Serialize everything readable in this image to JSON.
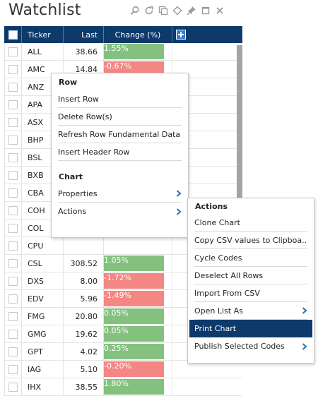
{
  "title": "Watchlist",
  "toolbar_icons": [
    "search-icon",
    "refresh-icon",
    "copy-icon",
    "diamond-icon",
    "pin-icon",
    "maximize-icon",
    "close-icon"
  ],
  "colors": {
    "header": "#0e3a6b",
    "positive": "#85c17e",
    "negative": "#f48683",
    "highlight": "#0e3a6b"
  },
  "table": {
    "headers": {
      "ticker": "Ticker",
      "last": "Last",
      "change": "Change (%)"
    },
    "rows": [
      {
        "ticker": "ALL",
        "last": "38.66",
        "change": "1.55%",
        "dir": "pos"
      },
      {
        "ticker": "AMC",
        "last": "14.84",
        "change": "-0.67%",
        "dir": "neg"
      },
      {
        "ticker": "ANZ",
        "last": "",
        "change": "",
        "dir": ""
      },
      {
        "ticker": "APA",
        "last": "",
        "change": "",
        "dir": ""
      },
      {
        "ticker": "ASX",
        "last": "",
        "change": "",
        "dir": ""
      },
      {
        "ticker": "BHP",
        "last": "",
        "change": "",
        "dir": ""
      },
      {
        "ticker": "BSL",
        "last": "",
        "change": "",
        "dir": ""
      },
      {
        "ticker": "BXB",
        "last": "",
        "change": "",
        "dir": ""
      },
      {
        "ticker": "CBA",
        "last": "",
        "change": "",
        "dir": ""
      },
      {
        "ticker": "COH",
        "last": "",
        "change": "",
        "dir": ""
      },
      {
        "ticker": "COL",
        "last": "",
        "change": "",
        "dir": ""
      },
      {
        "ticker": "CPU",
        "last": "",
        "change": "",
        "dir": ""
      },
      {
        "ticker": "CSL",
        "last": "308.52",
        "change": "1.05%",
        "dir": "pos"
      },
      {
        "ticker": "DXS",
        "last": "8.00",
        "change": "-1.72%",
        "dir": "neg"
      },
      {
        "ticker": "EDV",
        "last": "5.96",
        "change": "-1.49%",
        "dir": "neg"
      },
      {
        "ticker": "FMG",
        "last": "20.80",
        "change": "0.05%",
        "dir": "pos"
      },
      {
        "ticker": "GMG",
        "last": "19.62",
        "change": "0.05%",
        "dir": "pos"
      },
      {
        "ticker": "GPT",
        "last": "4.02",
        "change": "0.25%",
        "dir": "pos"
      },
      {
        "ticker": "IAG",
        "last": "5.10",
        "change": "-0.20%",
        "dir": "neg"
      },
      {
        "ticker": "IHX",
        "last": "38.55",
        "change": "1.80%",
        "dir": "pos"
      }
    ]
  },
  "context_menu": {
    "row_header": "Row",
    "row_items": [
      "Insert Row",
      "Delete Row(s)",
      "Refresh Row Fundamental Data",
      "Insert Header Row"
    ],
    "chart_header": "Chart",
    "chart_items": [
      {
        "label": "Properties",
        "submenu": true
      },
      {
        "label": "Actions",
        "submenu": true
      }
    ]
  },
  "actions_menu": {
    "header": "Actions",
    "items": [
      {
        "label": "Clone Chart",
        "submenu": false
      },
      {
        "label": "Copy CSV values to Clipboa...",
        "submenu": false
      },
      {
        "label": "Cycle Codes",
        "submenu": false
      },
      {
        "label": "Deselect All Rows",
        "submenu": false
      },
      {
        "label": "Import From CSV",
        "submenu": false
      },
      {
        "label": "Open List As",
        "submenu": true
      },
      {
        "label": "Print Chart",
        "submenu": false,
        "highlighted": true
      },
      {
        "label": "Publish Selected Codes",
        "submenu": true
      }
    ]
  }
}
